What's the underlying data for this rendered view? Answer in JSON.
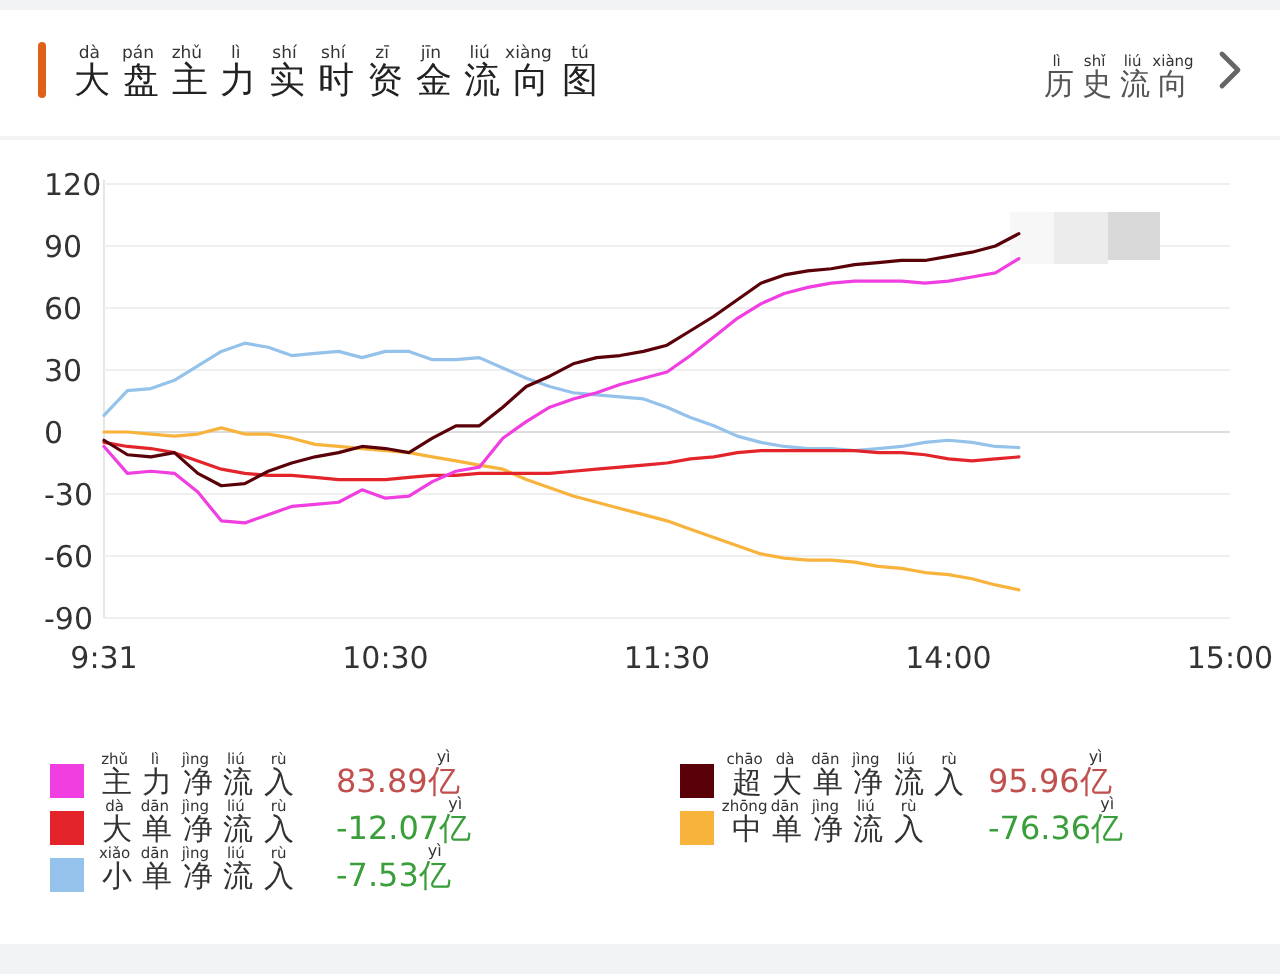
{
  "chart_data": {
    "type": "line",
    "title": "大盘主力实时资金流向图",
    "annotations": [
      "dà pán zhǔ lì shí shí zī jīn liú xiàng tú",
      "历史流向",
      "lì shǐ liú xiàng",
      "83.89亿",
      "yì",
      "zhǔ lì jìng liú rù",
      "95.96亿",
      "yì",
      "chāo dà dān jìng liú rù",
      "-12.07亿",
      "yì",
      "dà dān jìng liú rù",
      "-76.36亿",
      "yì",
      "zhōng dān jìng liú rù",
      "-7.53亿",
      "yì",
      "xiǎo dān jìng liú rù"
    ],
    "categories": [
      "9:31",
      null,
      null,
      null,
      null,
      null,
      null,
      null,
      null,
      null,
      null,
      null,
      "10:30",
      null,
      null,
      null,
      null,
      null,
      null,
      null,
      null,
      null,
      null,
      null,
      "11:30",
      null,
      null,
      null,
      null,
      null,
      null,
      null,
      null,
      null,
      null,
      null,
      "14:00",
      null,
      null,
      null,
      null,
      null,
      null,
      null,
      null,
      null,
      null,
      null,
      "15:00"
    ],
    "series": [
      {
        "name": "主力净流入",
        "color": "#f03ee0",
        "values": [
          -7,
          -20,
          -19,
          -20,
          -29,
          -43,
          -44,
          -40,
          -36,
          -35,
          -34,
          -28,
          -32,
          -31,
          -24,
          -19,
          -17,
          -3,
          5,
          12,
          16,
          19,
          23,
          26,
          29,
          37,
          46,
          55,
          62,
          67,
          70,
          72,
          73,
          73,
          73,
          72,
          73,
          75,
          77,
          83.89,
          null,
          null,
          null,
          null,
          null,
          null,
          null,
          null,
          null
        ]
      },
      {
        "name": "超大单净流入",
        "color": "#5a0008",
        "values": [
          -4,
          -11,
          -12,
          -10,
          -20,
          -26,
          -25,
          -19,
          -15,
          -12,
          -10,
          -7,
          -8,
          -10,
          -3,
          3,
          3,
          12,
          22,
          27,
          33,
          36,
          37,
          39,
          42,
          49,
          56,
          64,
          72,
          76,
          78,
          79,
          81,
          82,
          83,
          83,
          85,
          87,
          90,
          95.96,
          null,
          null,
          null,
          null,
          null,
          null,
          null,
          null,
          null
        ]
      },
      {
        "name": "大单净流入",
        "color": "#e3242b",
        "values": [
          -5,
          -7,
          -8,
          -10,
          -14,
          -18,
          -20,
          -21,
          -21,
          -22,
          -23,
          -23,
          -23,
          -22,
          -21,
          -21,
          -20,
          -20,
          -20,
          -20,
          -19,
          -18,
          -17,
          -16,
          -15,
          -13,
          -12,
          -10,
          -9,
          -9,
          -9,
          -9,
          -9,
          -10,
          -10,
          -11,
          -13,
          -14,
          -13,
          -12.07,
          null,
          null,
          null,
          null,
          null,
          null,
          null,
          null,
          null
        ]
      },
      {
        "name": "中单净流入",
        "color": "#f8b33c",
        "values": [
          0,
          0,
          -1,
          -2,
          -1,
          2,
          -1,
          -1,
          -3,
          -6,
          -7,
          -8,
          -9,
          -10,
          -12,
          -14,
          -16,
          -18,
          -23,
          -27,
          -31,
          -34,
          -37,
          -40,
          -43,
          -47,
          -51,
          -55,
          -59,
          -61,
          -62,
          -62,
          -63,
          -65,
          -66,
          -68,
          -69,
          -71,
          -74,
          -76.36,
          null,
          null,
          null,
          null,
          null,
          null,
          null,
          null,
          null
        ]
      },
      {
        "name": "小单净流入",
        "color": "#94c2ea",
        "values": [
          8,
          20,
          21,
          25,
          32,
          39,
          43,
          41,
          37,
          38,
          39,
          36,
          39,
          39,
          35,
          35,
          36,
          31,
          26,
          22,
          19,
          18,
          17,
          16,
          12,
          7,
          3,
          -2,
          -5,
          -7,
          -8,
          -8,
          -9,
          -8,
          -7,
          -5,
          -4,
          -5,
          -7,
          -7.53,
          null,
          null,
          null,
          null,
          null,
          null,
          null,
          null,
          null
        ]
      }
    ],
    "ylim": [
      -90,
      120
    ],
    "yticks": [
      -90,
      -60,
      -30,
      0,
      30,
      60,
      90,
      120
    ],
    "grid": "y",
    "legend": "bottom"
  }
}
